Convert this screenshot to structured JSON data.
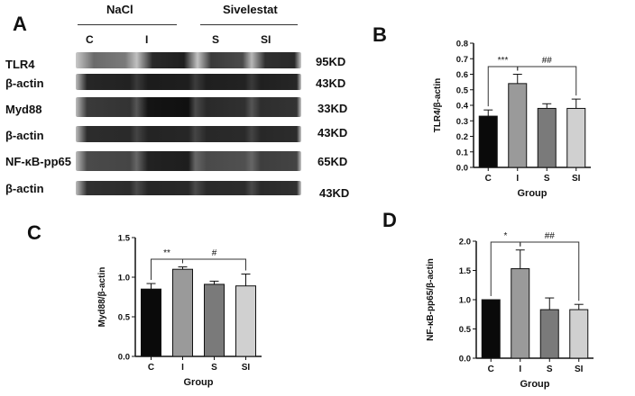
{
  "panel_a": {
    "letter": "A",
    "groups": {
      "left": "NaCl",
      "right": "Sivelestat"
    },
    "lanes": [
      "C",
      "I",
      "S",
      "SI"
    ],
    "blots": [
      {
        "label": "TLR4",
        "kd": "95KD"
      },
      {
        "label": "β-actin",
        "kd": "43KD"
      },
      {
        "label": "Myd88",
        "kd": "33KD"
      },
      {
        "label": "β-actin",
        "kd": "43KD"
      },
      {
        "label": "NF-κB-pp65",
        "kd": "65KD"
      },
      {
        "label": "β-actin",
        "kd": "43KD"
      }
    ]
  },
  "chart_data": [
    {
      "panel": "B",
      "type": "bar",
      "categories": [
        "C",
        "I",
        "S",
        "SI"
      ],
      "values": [
        0.33,
        0.54,
        0.38,
        0.38
      ],
      "errors": [
        0.04,
        0.06,
        0.03,
        0.06
      ],
      "ylabel": "TLR4/β-actin",
      "xlabel": "Group",
      "ylim": [
        0.0,
        0.8
      ],
      "yticks": [
        0.0,
        0.1,
        0.2,
        0.3,
        0.4,
        0.5,
        0.6,
        0.7,
        0.8
      ],
      "colors": [
        "#0a0a0a",
        "#9a9a9a",
        "#7a7a7a",
        "#d0d0d0"
      ],
      "annotations": [
        {
          "text": "***",
          "from": 0,
          "to": 1
        },
        {
          "text": "##",
          "from": 1,
          "to": 3
        }
      ]
    },
    {
      "panel": "C",
      "type": "bar",
      "categories": [
        "C",
        "I",
        "S",
        "SI"
      ],
      "values": [
        0.85,
        1.1,
        0.91,
        0.89
      ],
      "errors": [
        0.07,
        0.03,
        0.04,
        0.15
      ],
      "ylabel": "Myd88/β-actin",
      "xlabel": "Group",
      "ylim": [
        0.0,
        1.5
      ],
      "yticks": [
        0.0,
        0.5,
        1.0,
        1.5
      ],
      "colors": [
        "#0a0a0a",
        "#9a9a9a",
        "#7a7a7a",
        "#d0d0d0"
      ],
      "annotations": [
        {
          "text": "**",
          "from": 0,
          "to": 1
        },
        {
          "text": "#",
          "from": 1,
          "to": 3
        }
      ]
    },
    {
      "panel": "D",
      "type": "bar",
      "categories": [
        "C",
        "I",
        "S",
        "SI"
      ],
      "values": [
        1.0,
        1.53,
        0.83,
        0.83
      ],
      "errors": [
        0.0,
        0.32,
        0.2,
        0.09
      ],
      "ylabel": "NF-κB-pp65/β-actin",
      "xlabel": "Group",
      "ylim": [
        0.0,
        2.0
      ],
      "yticks": [
        0.0,
        0.5,
        1.0,
        1.5,
        2.0
      ],
      "colors": [
        "#0a0a0a",
        "#9a9a9a",
        "#7a7a7a",
        "#d0d0d0"
      ],
      "annotations": [
        {
          "text": "*",
          "from": 0,
          "to": 1
        },
        {
          "text": "##",
          "from": 1,
          "to": 3
        }
      ]
    }
  ]
}
